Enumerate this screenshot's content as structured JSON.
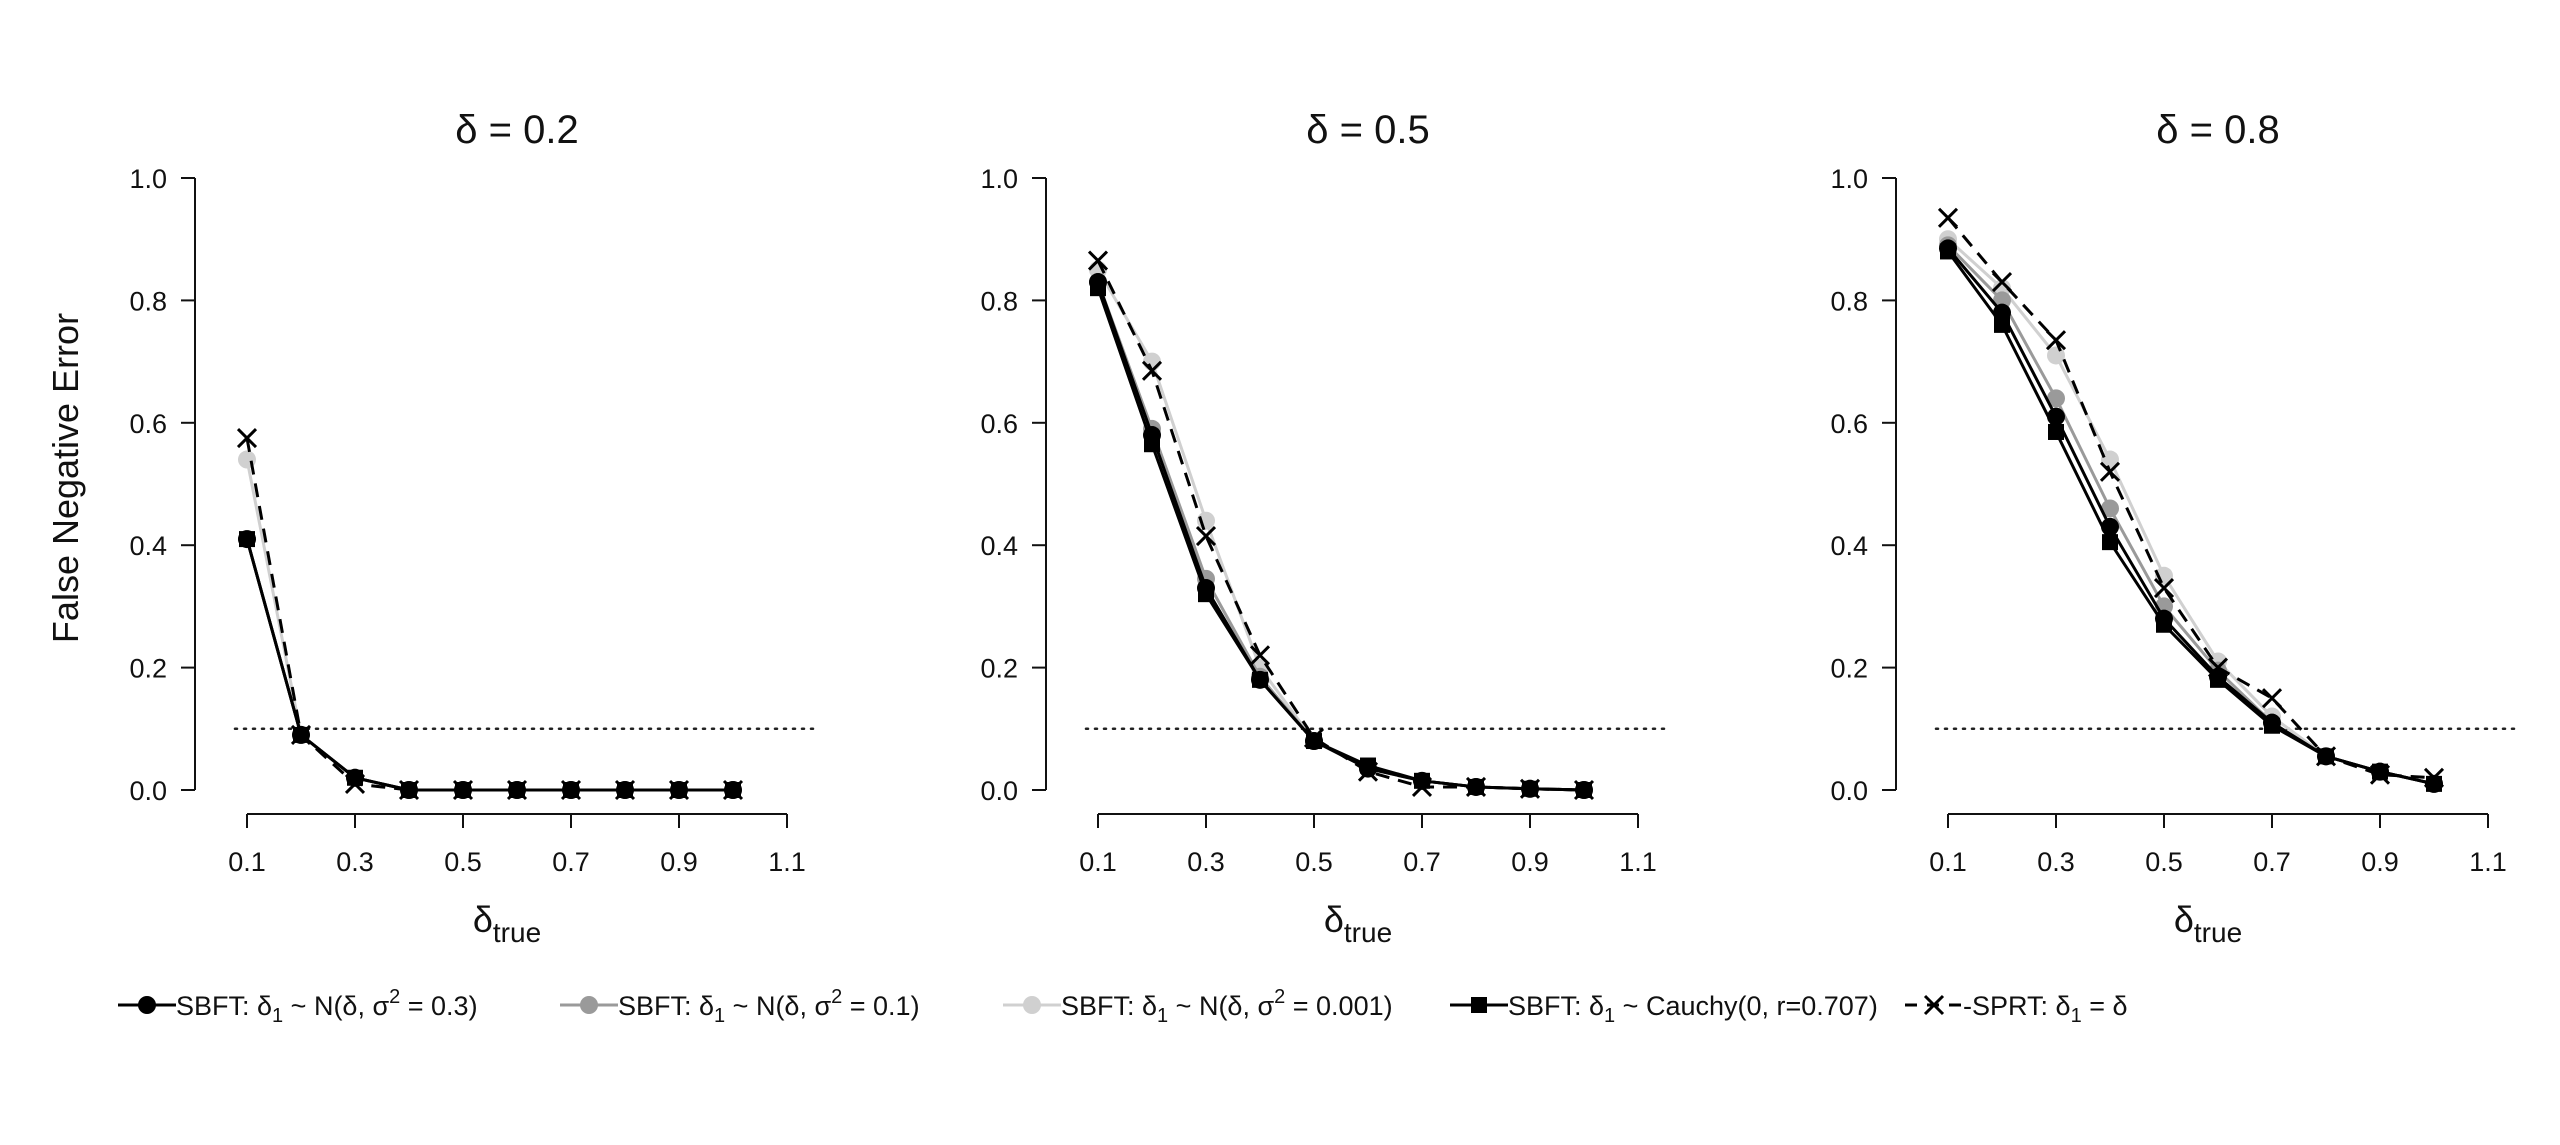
{
  "figure": {
    "ylabel": "False Negative Error",
    "xlabel_main": "δ",
    "xlabel_sub": "true"
  },
  "legend": [
    {
      "series": "normal_0.3",
      "prefix": "SBFT: δ",
      "sub": "1",
      "mid": " ~ N(δ, σ",
      "sup": "2",
      "suffix": " = 0.3)",
      "marker": "circle",
      "color": "#000000",
      "dash": "solid"
    },
    {
      "series": "normal_0.1",
      "prefix": "SBFT: δ",
      "sub": "1",
      "mid": " ~ N(δ, σ",
      "sup": "2",
      "suffix": " = 0.1)",
      "marker": "circle",
      "color": "#9a9a9a",
      "dash": "solid"
    },
    {
      "series": "normal_0.001",
      "prefix": "SBFT: δ",
      "sub": "1",
      "mid": " ~ N(δ, σ",
      "sup": "2",
      "suffix": " = 0.001)",
      "marker": "circle",
      "color": "#d0d0d0",
      "dash": "solid"
    },
    {
      "series": "cauchy",
      "prefix": "SBFT: δ",
      "sub": "1",
      "mid": " ~ Cauchy(0, r=0.707)",
      "sup": "",
      "suffix": "",
      "marker": "square",
      "color": "#000000",
      "dash": "solid"
    },
    {
      "series": "sprt",
      "prefix": "SPRT: δ",
      "sub": "1",
      "mid": " = δ",
      "sup": "",
      "suffix": "",
      "marker": "cross",
      "color": "#000000",
      "dash": "dashed"
    }
  ],
  "chart_data": [
    {
      "type": "line",
      "title": "δ  = 0.2",
      "xlabel": "δtrue",
      "ylabel": "False Negative Error",
      "x": [
        0.1,
        0.2,
        0.3,
        0.4,
        0.5,
        0.6,
        0.7,
        0.8,
        0.9,
        1.0
      ],
      "xlim": [
        0.1,
        1.1
      ],
      "ylim": [
        0,
        1
      ],
      "xticks": [
        "0.1",
        "0.3",
        "0.5",
        "0.7",
        "0.9",
        "1.1"
      ],
      "yticks": [
        "0.0",
        "0.2",
        "0.4",
        "0.6",
        "0.8",
        "1.0"
      ],
      "reference_line": 0.1,
      "series": [
        {
          "id": "normal_0.3",
          "values": [
            0.41,
            0.09,
            0.02,
            0.0,
            0.0,
            0.0,
            0.0,
            0.0,
            0.0,
            0.0
          ]
        },
        {
          "id": "normal_0.1",
          "values": [
            0.41,
            0.09,
            0.02,
            0.0,
            0.0,
            0.0,
            0.0,
            0.0,
            0.0,
            0.0
          ]
        },
        {
          "id": "normal_0.001",
          "values": [
            0.54,
            0.09,
            0.02,
            0.0,
            0.0,
            0.0,
            0.0,
            0.0,
            0.0,
            0.0
          ]
        },
        {
          "id": "cauchy",
          "values": [
            0.41,
            0.09,
            0.02,
            0.0,
            0.0,
            0.0,
            0.0,
            0.0,
            0.0,
            0.0
          ]
        },
        {
          "id": "sprt",
          "values": [
            0.575,
            0.09,
            0.01,
            0.0,
            0.0,
            0.0,
            0.0,
            0.0,
            0.0,
            0.0
          ]
        }
      ]
    },
    {
      "type": "line",
      "title": "δ = 0.5",
      "xlabel": "δtrue",
      "ylabel": "False Negative Error",
      "x": [
        0.1,
        0.2,
        0.3,
        0.4,
        0.5,
        0.6,
        0.7,
        0.8,
        0.9,
        1.0
      ],
      "xlim": [
        0.1,
        1.1
      ],
      "ylim": [
        0,
        1
      ],
      "xticks": [
        "0.1",
        "0.3",
        "0.5",
        "0.7",
        "0.9",
        "1.1"
      ],
      "yticks": [
        "0.0",
        "0.2",
        "0.4",
        "0.6",
        "0.8",
        "1.0"
      ],
      "reference_line": 0.1,
      "series": [
        {
          "id": "normal_0.3",
          "values": [
            0.83,
            0.58,
            0.33,
            0.18,
            0.08,
            0.035,
            0.015,
            0.005,
            0.002,
            0.0
          ]
        },
        {
          "id": "normal_0.1",
          "values": [
            0.83,
            0.59,
            0.345,
            0.185,
            0.08,
            0.035,
            0.015,
            0.005,
            0.002,
            0.0
          ]
        },
        {
          "id": "normal_0.001",
          "values": [
            0.85,
            0.7,
            0.44,
            0.2,
            0.08,
            0.035,
            0.015,
            0.005,
            0.002,
            0.0
          ]
        },
        {
          "id": "cauchy",
          "values": [
            0.82,
            0.565,
            0.32,
            0.18,
            0.08,
            0.04,
            0.015,
            0.005,
            0.002,
            0.0
          ]
        },
        {
          "id": "sprt",
          "values": [
            0.865,
            0.685,
            0.415,
            0.22,
            0.085,
            0.03,
            0.005,
            0.005,
            0.002,
            0.0
          ]
        }
      ]
    },
    {
      "type": "line",
      "title": "δ = 0.8",
      "xlabel": "δtrue",
      "ylabel": "False Negative Error",
      "x": [
        0.1,
        0.2,
        0.3,
        0.4,
        0.5,
        0.6,
        0.7,
        0.8,
        0.9,
        1.0
      ],
      "xlim": [
        0.1,
        1.1
      ],
      "ylim": [
        0,
        1
      ],
      "xticks": [
        "0.1",
        "0.3",
        "0.5",
        "0.7",
        "0.9",
        "1.1"
      ],
      "yticks": [
        "0.0",
        "0.2",
        "0.4",
        "0.6",
        "0.8",
        "1.0"
      ],
      "reference_line": 0.1,
      "series": [
        {
          "id": "normal_0.3",
          "values": [
            0.885,
            0.78,
            0.61,
            0.43,
            0.28,
            0.185,
            0.11,
            0.055,
            0.03,
            0.01
          ]
        },
        {
          "id": "normal_0.1",
          "values": [
            0.89,
            0.8,
            0.64,
            0.46,
            0.3,
            0.195,
            0.11,
            0.055,
            0.03,
            0.01
          ]
        },
        {
          "id": "normal_0.001",
          "values": [
            0.9,
            0.82,
            0.71,
            0.54,
            0.35,
            0.21,
            0.12,
            0.055,
            0.03,
            0.01
          ]
        },
        {
          "id": "cauchy",
          "values": [
            0.88,
            0.76,
            0.585,
            0.405,
            0.27,
            0.18,
            0.105,
            0.055,
            0.03,
            0.01
          ]
        },
        {
          "id": "sprt",
          "values": [
            0.935,
            0.83,
            0.735,
            0.52,
            0.33,
            0.2,
            0.15,
            0.055,
            0.025,
            0.02
          ]
        }
      ]
    }
  ]
}
